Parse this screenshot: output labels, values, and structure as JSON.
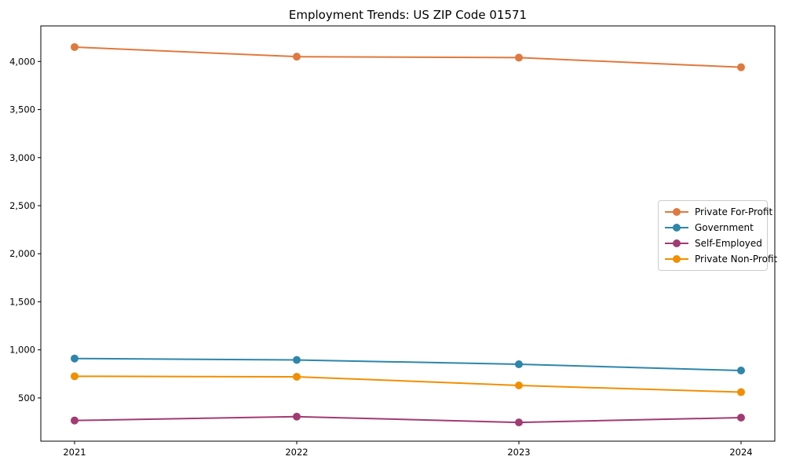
{
  "chart_data": {
    "type": "line",
    "title": "Employment Trends: US ZIP Code 01571",
    "xlabel": "",
    "ylabel": "",
    "x_categories": [
      "2021",
      "2022",
      "2023",
      "2024"
    ],
    "series": [
      {
        "name": "Private For-Profit",
        "color": "#E0793E",
        "values": [
          4150,
          4050,
          4040,
          3940
        ]
      },
      {
        "name": "Government",
        "color": "#2E86AB",
        "values": [
          910,
          895,
          850,
          785
        ]
      },
      {
        "name": "Self-Employed",
        "color": "#A23B72",
        "values": [
          265,
          305,
          245,
          295
        ]
      },
      {
        "name": "Private Non-Profit",
        "color": "#F18F01",
        "values": [
          725,
          720,
          630,
          560
        ]
      }
    ],
    "yticks": [
      500,
      1000,
      1500,
      2000,
      2500,
      3000,
      3500,
      4000
    ],
    "ytick_labels": [
      "500",
      "1,000",
      "1,500",
      "2,000",
      "2,500",
      "3,000",
      "3,500",
      "4,000"
    ],
    "ylim": [
      50,
      4370
    ],
    "grid": false,
    "legend_position": "center right",
    "axis_color": "#000000",
    "background_color": "#ffffff"
  }
}
